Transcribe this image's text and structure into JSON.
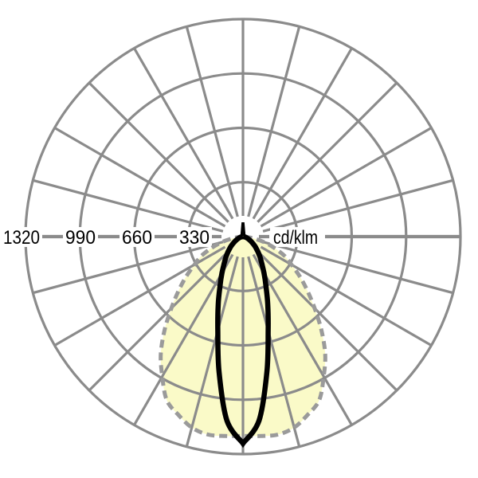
{
  "figure": {
    "background": "#ffffff",
    "unit_label": "cd/klm",
    "radial_axis_labels": [
      "1320",
      "990",
      "660",
      "330"
    ]
  },
  "chart_data": {
    "type": "polar",
    "subtype": "luminous-intensity-distribution",
    "units": "cd/klm",
    "radial_ticks": [
      330,
      660,
      990,
      1320
    ],
    "radial_max": 1320,
    "angle_grid_step_deg": 15,
    "angle_reference": "0 deg = straight down (nadir), curves symmetric left/right",
    "grid_color": "#8b8b8b",
    "background_color": "#ffffff",
    "series": [
      {
        "name": "wide-beam-dashed",
        "style": "dashed",
        "color": "#9a9a9a",
        "fill": "#fafac8",
        "symmetric": true,
        "points_half_plane": [
          [
            0,
            1210
          ],
          [
            5,
            1215
          ],
          [
            10,
            1220
          ],
          [
            15,
            1200
          ],
          [
            20,
            1150
          ],
          [
            25,
            1095
          ],
          [
            30,
            980
          ],
          [
            35,
            870
          ],
          [
            40,
            740
          ],
          [
            45,
            615
          ],
          [
            50,
            510
          ],
          [
            55,
            420
          ],
          [
            60,
            340
          ],
          [
            65,
            280
          ],
          [
            70,
            205
          ],
          [
            75,
            135
          ],
          [
            80,
            70
          ],
          [
            85,
            25
          ],
          [
            90,
            0
          ]
        ]
      },
      {
        "name": "narrow-beam-solid",
        "style": "solid",
        "color": "#000000",
        "fill": "none",
        "symmetric": true,
        "points_half_plane": [
          [
            0,
            1255
          ],
          [
            5,
            1120
          ],
          [
            10,
            835
          ],
          [
            15,
            590
          ],
          [
            20,
            440
          ],
          [
            25,
            330
          ],
          [
            30,
            255
          ],
          [
            40,
            160
          ],
          [
            50,
            100
          ],
          [
            60,
            55
          ],
          [
            75,
            20
          ],
          [
            90,
            0
          ]
        ]
      }
    ]
  }
}
